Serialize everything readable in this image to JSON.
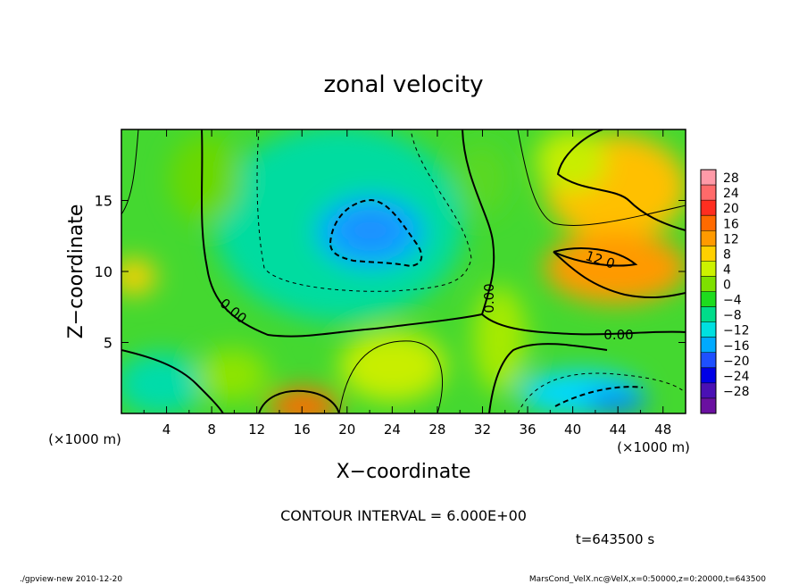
{
  "chart_data": {
    "type": "heatmap",
    "title": "zonal velocity",
    "xlabel": "X−coordinate",
    "ylabel": "Z−coordinate",
    "x_unit_label": "(×1000 m)",
    "y_unit_label": "(×1000 m)",
    "xlim": [
      0,
      50
    ],
    "ylim": [
      0,
      20
    ],
    "x_ticks": [
      "4",
      "8",
      "12",
      "16",
      "20",
      "24",
      "28",
      "32",
      "36",
      "40",
      "44",
      "48"
    ],
    "y_ticks": [
      "5",
      "10",
      "15"
    ],
    "colorbar_labels": [
      "28",
      "24",
      "20",
      "16",
      "12",
      "8",
      "4",
      "0",
      "−4",
      "−8",
      "−12",
      "−16",
      "−20",
      "−24",
      "−28"
    ],
    "colorbar_colors": [
      "#ff9aa8",
      "#ff6a6a",
      "#ff2e20",
      "#ff6a00",
      "#ff9a00",
      "#ffd000",
      "#ccf200",
      "#7ee000",
      "#1edc1e",
      "#00dc8a",
      "#00e0e0",
      "#00aaff",
      "#1e50ff",
      "#0000e6",
      "#4a10b4",
      "#6a10a0"
    ],
    "contour_labels": [
      "12.0",
      "0.00",
      "0.00",
      "0.00"
    ],
    "contour_interval": "CONTOUR INTERVAL = 6.000E+00",
    "time_label": "t=643500 s",
    "footer_left": "./gpview-new  2010-12-20",
    "footer_right": "MarsCond_VelX.nc@VelX,x=0:50000,z=0:20000,t=643500",
    "grid": false
  }
}
